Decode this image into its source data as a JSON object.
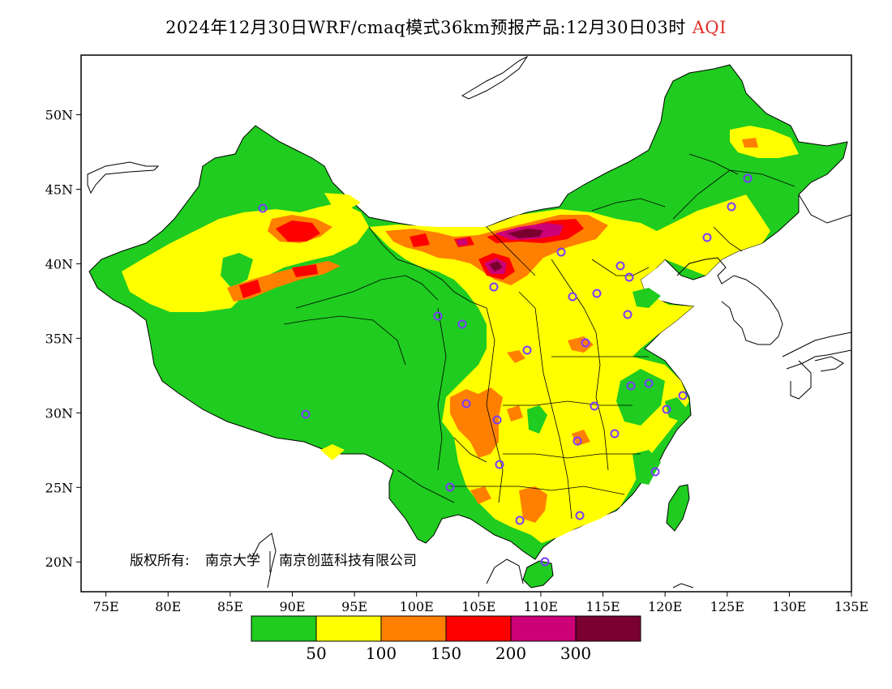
{
  "title": {
    "main": "2024年12月30日WRF/cmaq模式36km预报产品:12月30日03时",
    "variable": "AQI"
  },
  "axes": {
    "lon_labels": [
      "75E",
      "80E",
      "85E",
      "90E",
      "95E",
      "100E",
      "105E",
      "110E",
      "115E",
      "120E",
      "125E",
      "130E",
      "135E"
    ],
    "lon_values": [
      75,
      80,
      85,
      90,
      95,
      100,
      105,
      110,
      115,
      120,
      125,
      130,
      135
    ],
    "lat_labels": [
      "50N",
      "45N",
      "40N",
      "35N",
      "30N",
      "25N",
      "20N"
    ],
    "lat_values": [
      50,
      45,
      40,
      35,
      30,
      25,
      20
    ],
    "lon_range": [
      73,
      135
    ],
    "lat_range": [
      18,
      54
    ]
  },
  "copyright": {
    "prefix": "版权所有:",
    "org1": "南京大学",
    "org2": "南京创蓝科技有限公司"
  },
  "legend": {
    "colors": [
      "#1fcc1f",
      "#ffff00",
      "#ff8000",
      "#ff0000",
      "#cc0077",
      "#7a0030"
    ],
    "labels": [
      "50",
      "100",
      "150",
      "200",
      "300"
    ],
    "thresholds": [
      50,
      100,
      150,
      200,
      300
    ]
  },
  "colors": {
    "good": "#1fcc1f",
    "moderate": "#ffff00",
    "usg": "#ff8000",
    "unhealthy": "#ff0000",
    "very_unhealthy": "#cc0077",
    "hazardous": "#7a0030",
    "title_accent": "#e0302a",
    "station_marker": "#7a3cff"
  }
}
